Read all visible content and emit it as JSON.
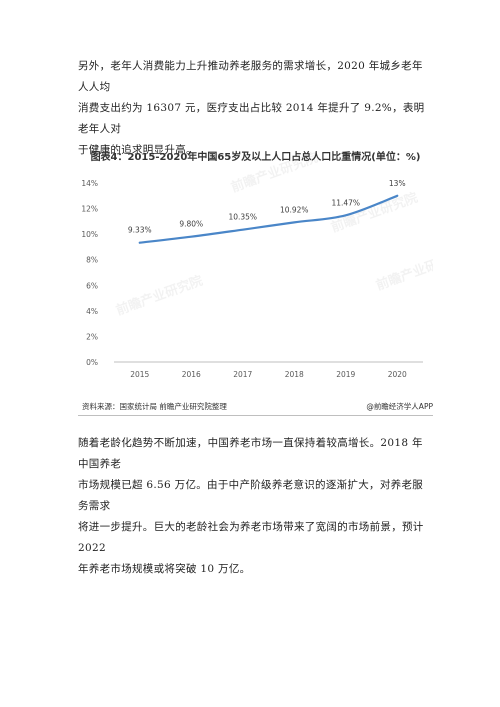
{
  "paragraph1": [
    "另外，老年人消费能力上升推动养老服务的需求增长，2020 年城乡老年人人均",
    "消费支出约为 16307 元，医疗支出占比较 2014 年提升了 9.2%，表明老年人对",
    "于健康的追求明显升高。"
  ],
  "figure": {
    "title": "图表4：2015-2020年中国65岁及以上人口占总人口比重情况(单位：%)",
    "source": "资料来源：国家统计局 前瞻产业研究院整理",
    "copyright": "@前瞻经济学人APP",
    "watermark": "前瞻产业研究院"
  },
  "chart_data": {
    "type": "line",
    "title": "图表4：2015-2020年中国65岁及以上人口占总人口比重情况(单位：%)",
    "categories": [
      "2015",
      "2016",
      "2017",
      "2018",
      "2019",
      "2020"
    ],
    "values": [
      9.33,
      9.8,
      10.35,
      10.92,
      11.47,
      13
    ],
    "data_labels": [
      "9.33%",
      "9.80%",
      "10.35%",
      "10.92%",
      "11.47%",
      "13%"
    ],
    "y_ticks": [
      "0%",
      "2%",
      "4%",
      "6%",
      "8%",
      "10%",
      "12%",
      "14%"
    ],
    "ylim": [
      0,
      14
    ],
    "grid": false,
    "line_color": "#4a86c8"
  },
  "paragraph2": [
    "随着老龄化趋势不断加速，中国养老市场一直保持着较高增长。2018 年中国养老",
    "市场规模已超 6.56 万亿。由于中产阶级养老意识的逐渐扩大，对养老服务需求",
    "将进一步提升。巨大的老龄社会为养老市场带来了宽阔的市场前景，预计 2022",
    "年养老市场规模或将突破 10 万亿。"
  ]
}
